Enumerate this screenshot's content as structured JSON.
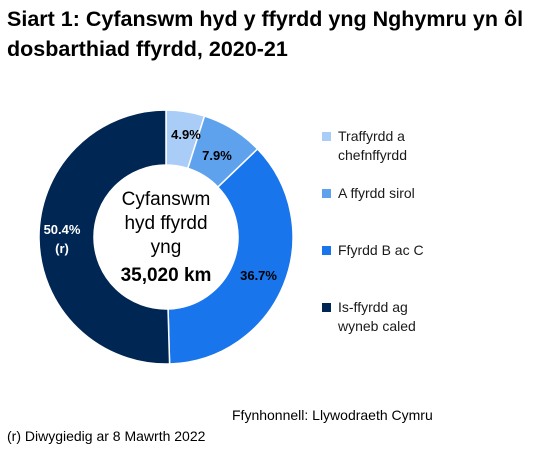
{
  "chart_data": {
    "type": "pie",
    "title": "Siart 1: Cyfanswm hyd y ffyrdd yng Nghymru yn ôl dosbarthiad ffyrdd, 2020-21",
    "donut": true,
    "center_text": [
      "Cyfanswm",
      "hyd ffyrdd",
      "yng"
    ],
    "center_total": "35,020 km",
    "slices": [
      {
        "label": "Traffyrdd a chefnffyrdd",
        "value": 4.9,
        "display": "4.9%",
        "color": "#a9cdf6"
      },
      {
        "label": "A ffyrdd sirol",
        "value": 7.9,
        "display": "7.9%",
        "color": "#5ea1ed"
      },
      {
        "label": "Ffyrdd B ac C",
        "value": 36.7,
        "display": "36.7%",
        "color": "#1875eb"
      },
      {
        "label": "Is-ffyrdd ag wyneb caled",
        "value": 50.4,
        "display": "50.4%",
        "note": "(r)",
        "color": "#002654"
      }
    ],
    "legend_position": "right"
  },
  "source": "Ffynhonnell: Llywodraeth Cymru",
  "footnote": "(r) Diwygiedig ar 8 Mawrth 2022"
}
